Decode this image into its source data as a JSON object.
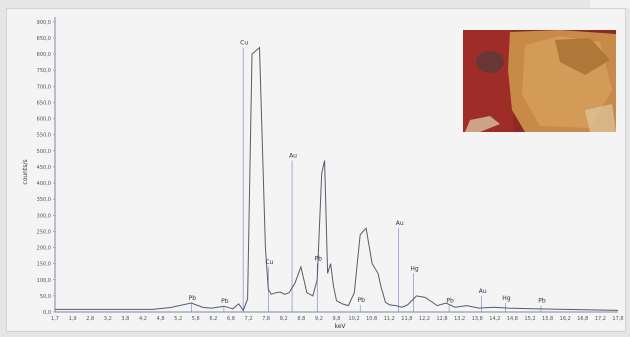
{
  "chart_data": {
    "type": "line",
    "title": "",
    "xlabel": "keV",
    "ylabel": "counts/s",
    "xlim": [
      1.7,
      20.7
    ],
    "ylim": [
      0,
      915
    ],
    "x_ticks": [
      "1,7",
      "1,9",
      "2,8",
      "3,2",
      "3,8",
      "4,2",
      "4,8",
      "5,2",
      "5,8",
      "6,2",
      "6,8",
      "7,2",
      "7,8",
      "8,2",
      "8,8",
      "9,2",
      "9,8",
      "10,2",
      "10,8",
      "11,2",
      "11,8",
      "12,2",
      "12,8",
      "13,2",
      "13,8",
      "14,2",
      "14,8",
      "15,2",
      "15,8",
      "16,2",
      "16,8",
      "17,2",
      "17,8"
    ],
    "y_ticks": [
      "0,0",
      "50,0",
      "100,0",
      "150,0",
      "200,0",
      "250,0",
      "300,0",
      "350,0",
      "400,0",
      "450,0",
      "500,0",
      "550,0",
      "600,0",
      "650,0",
      "700,0",
      "750,0",
      "800,0",
      "850,0",
      "900,0"
    ],
    "series": [
      {
        "x": [
          1.7,
          5.0,
          5.6,
          6.3,
          6.7,
          7.0,
          7.4,
          7.7,
          7.9,
          8.05,
          8.2,
          8.35,
          8.6,
          8.8,
          8.9,
          9.0,
          9.15,
          9.3,
          9.45,
          9.6,
          9.8,
          10.0,
          10.2,
          10.4,
          10.55,
          10.7,
          10.8,
          10.9,
          11.0,
          11.1,
          11.2,
          11.4,
          11.6,
          11.8,
          12.0,
          12.2,
          12.4,
          12.6,
          12.7,
          12.85,
          13.0,
          13.2,
          13.4,
          13.6,
          13.9,
          14.2,
          14.6,
          14.9,
          15.2,
          15.6,
          16.0,
          16.5,
          17.0,
          17.8,
          20.7
        ],
        "y": [
          8,
          8,
          14,
          28,
          14,
          12,
          18,
          10,
          25,
          5,
          40,
          800,
          820,
          200,
          70,
          55,
          60,
          62,
          55,
          60,
          90,
          140,
          60,
          50,
          100,
          430,
          470,
          120,
          150,
          80,
          35,
          25,
          20,
          60,
          240,
          260,
          150,
          120,
          80,
          30,
          22,
          20,
          15,
          22,
          50,
          45,
          20,
          28,
          15,
          20,
          12,
          15,
          12,
          10,
          5
        ]
      }
    ],
    "peaks": [
      {
        "label": "Pb",
        "x": 6.3,
        "y": 28
      },
      {
        "label": "Pb",
        "x": 7.4,
        "y": 18
      },
      {
        "label": "Cu",
        "x": 8.05,
        "y": 820
      },
      {
        "label": "Cu",
        "x": 8.9,
        "y": 140
      },
      {
        "label": "Au",
        "x": 9.7,
        "y": 470
      },
      {
        "label": "Pb",
        "x": 10.55,
        "y": 150
      },
      {
        "label": "Pb",
        "x": 12.0,
        "y": 22
      },
      {
        "label": "Au",
        "x": 13.3,
        "y": 260
      },
      {
        "label": "Hg",
        "x": 13.8,
        "y": 120
      },
      {
        "label": "Pb",
        "x": 15.0,
        "y": 20
      },
      {
        "label": "Au",
        "x": 16.1,
        "y": 50
      },
      {
        "label": "Hg",
        "x": 16.9,
        "y": 28
      },
      {
        "label": "Pb",
        "x": 18.1,
        "y": 20
      }
    ],
    "grid": false,
    "legend": "none",
    "colors": {
      "line": "#5a5a6a",
      "marker": "#6a7fd6",
      "axis": "#7a8aa0"
    }
  }
}
